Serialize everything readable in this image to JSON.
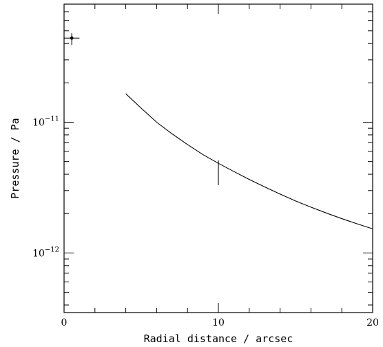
{
  "chart_data": {
    "type": "line",
    "title": "",
    "xlabel": "Radial distance / arcsec",
    "ylabel": "Pressure / Pa",
    "xlim": [
      0,
      20
    ],
    "ylim": [
      3.5e-13,
      8e-11
    ],
    "yscale": "log",
    "grid": false,
    "legend": "none",
    "x_ticks": [
      {
        "value": 0,
        "label": "0"
      },
      {
        "value": 10,
        "label": "10"
      },
      {
        "value": 20,
        "label": "20"
      }
    ],
    "y_ticks": [
      {
        "value": 1e-12,
        "base": "10",
        "exp": "−12"
      },
      {
        "value": 1e-11,
        "base": "10",
        "exp": "−11"
      }
    ],
    "series": [
      {
        "type": "line",
        "x": [
          4,
          5,
          6,
          7,
          8,
          9,
          10,
          11,
          12,
          13,
          14,
          15,
          16,
          17,
          18,
          19,
          20
        ],
        "y": [
          1.65e-11,
          1.28e-11,
          1e-11,
          8.15e-12,
          6.75e-12,
          5.65e-12,
          4.85e-12,
          4.2e-12,
          3.65e-12,
          3.2e-12,
          2.82e-12,
          2.5e-12,
          2.24e-12,
          2.02e-12,
          1.83e-12,
          1.67e-12,
          1.53e-12
        ]
      },
      {
        "type": "errorbar",
        "points": [
          {
            "x": 0.5,
            "y": 4.4e-11,
            "xerr": 0.5,
            "ylow": 3.9e-11,
            "yhigh": 4.8e-11,
            "marker": true
          },
          {
            "x": 10,
            "y": 4.2e-12,
            "xerr": 0,
            "ylow": 3.3e-12,
            "yhigh": 5.1e-12,
            "marker": false
          }
        ]
      }
    ]
  }
}
